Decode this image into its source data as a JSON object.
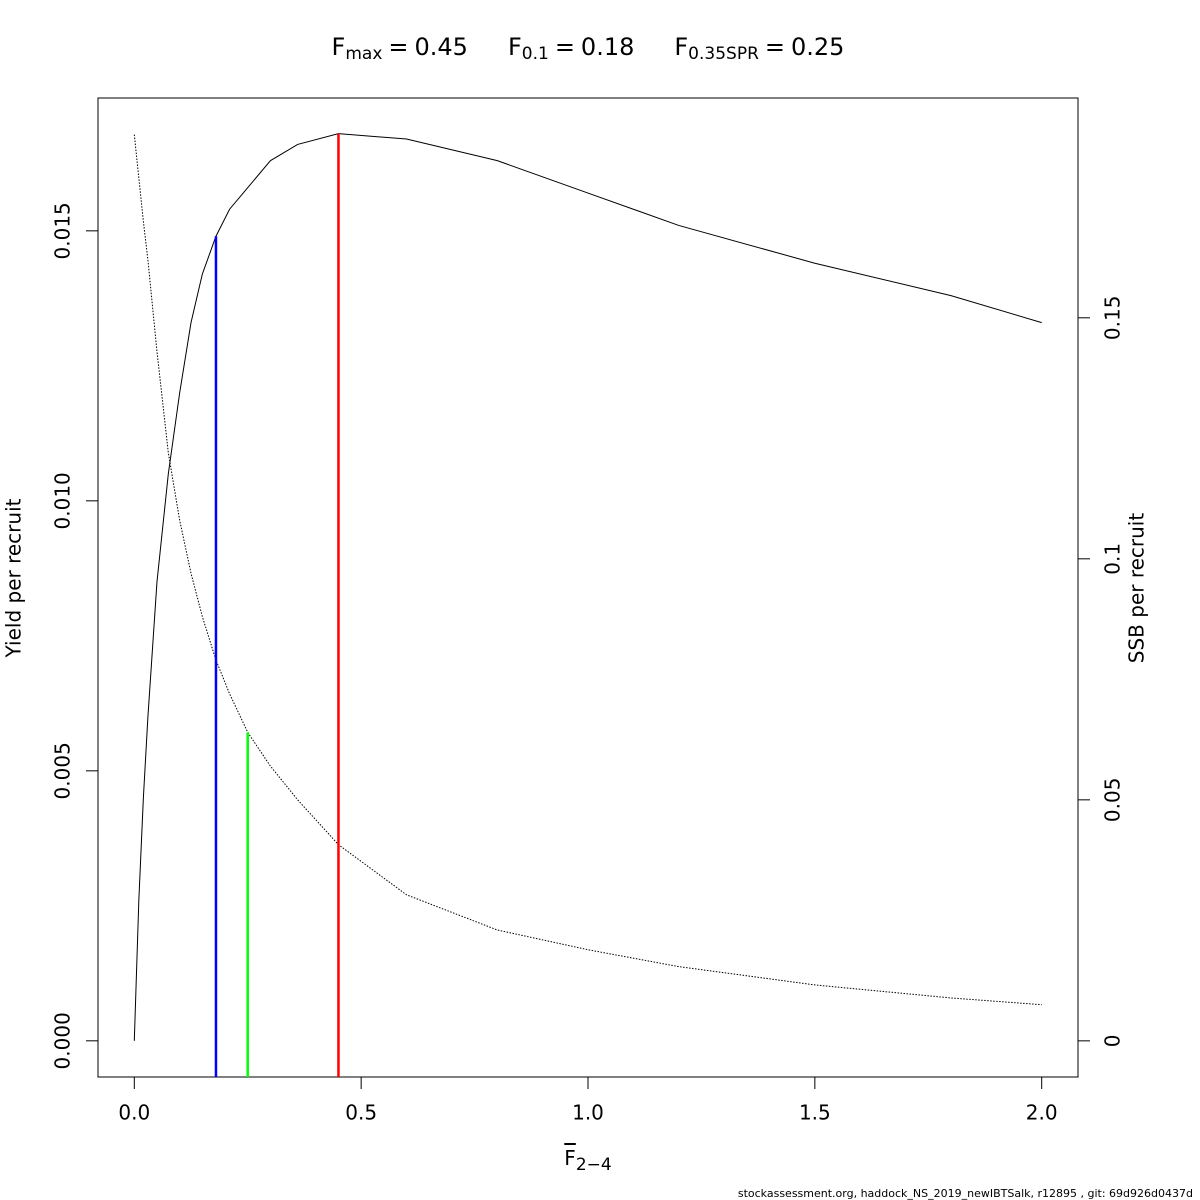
{
  "chart_data": {
    "type": "line",
    "title": [
      {
        "symbol": "F",
        "subscript": "max",
        "sign": "=",
        "value": 0.45,
        "top": 0.0168,
        "axis": "y",
        "color": "#ff0000"
      },
      {
        "symbol": "F",
        "subscript": "0.1",
        "sign": "=",
        "value": 0.18,
        "top": 0.0149,
        "axis": "y",
        "color": "#0000ff"
      },
      {
        "symbol": "F",
        "subscript": "0.35SPR",
        "sign": "=",
        "value": 0.25,
        "top": 0.064,
        "axis": "y2",
        "color": "#00ff00"
      }
    ],
    "xlabel": {
      "symbol": "F",
      "subscript": "2−4"
    },
    "ylabel": "Yield per recruit",
    "y2label": "SSB per recruit",
    "footer": "stockassessment.org, haddock_NS_2019_newIBTSalk, r12895 , git: 69d926d0437d",
    "x": [
      0,
      0.01,
      0.02,
      0.03,
      0.05,
      0.075,
      0.1,
      0.125,
      0.15,
      0.18,
      0.21,
      0.25,
      0.3,
      0.36,
      0.45,
      0.6,
      0.8,
      1.0,
      1.2,
      1.5,
      1.8,
      2.0
    ],
    "series": [
      {
        "color": "#000000",
        "dashed": false,
        "axis": "y",
        "values": [
          0,
          0.0026,
          0.0045,
          0.006,
          0.0085,
          0.0105,
          0.012,
          0.0133,
          0.0142,
          0.0149,
          0.0154,
          0.0158,
          0.0163,
          0.0166,
          0.0168,
          0.0167,
          0.0163,
          0.0157,
          0.0151,
          0.0144,
          0.0138,
          0.0133
        ]
      },
      {
        "color": "#000000",
        "dashed": true,
        "axis": "y2",
        "values": [
          0.188,
          0.179,
          0.17,
          0.162,
          0.143,
          0.122,
          0.108,
          0.097,
          0.088,
          0.079,
          0.072,
          0.064,
          0.057,
          0.05,
          0.0407,
          0.0303,
          0.023,
          0.0189,
          0.0154,
          0.0116,
          0.0089,
          0.0075
        ]
      }
    ],
    "xlim": [
      -0.08,
      2.08
    ],
    "xticks": [
      {
        "value": 0,
        "label": "0.0"
      },
      0.5,
      {
        "value": 1,
        "label": "1.0"
      },
      1.5,
      {
        "value": 2,
        "label": "2.0"
      }
    ],
    "ylim": [
      -0.00067,
      0.01746
    ],
    "yticks": [
      {
        "value": 0,
        "label": "0.000"
      },
      {
        "value": 0.005,
        "label": "0.005"
      },
      {
        "value": 0.01,
        "label": "0.010"
      },
      {
        "value": 0.015,
        "label": "0.015"
      }
    ],
    "y2lim": [
      -0.0075,
      0.1956
    ],
    "y2ticks": [
      0,
      0.05,
      0.1,
      0.15
    ]
  }
}
